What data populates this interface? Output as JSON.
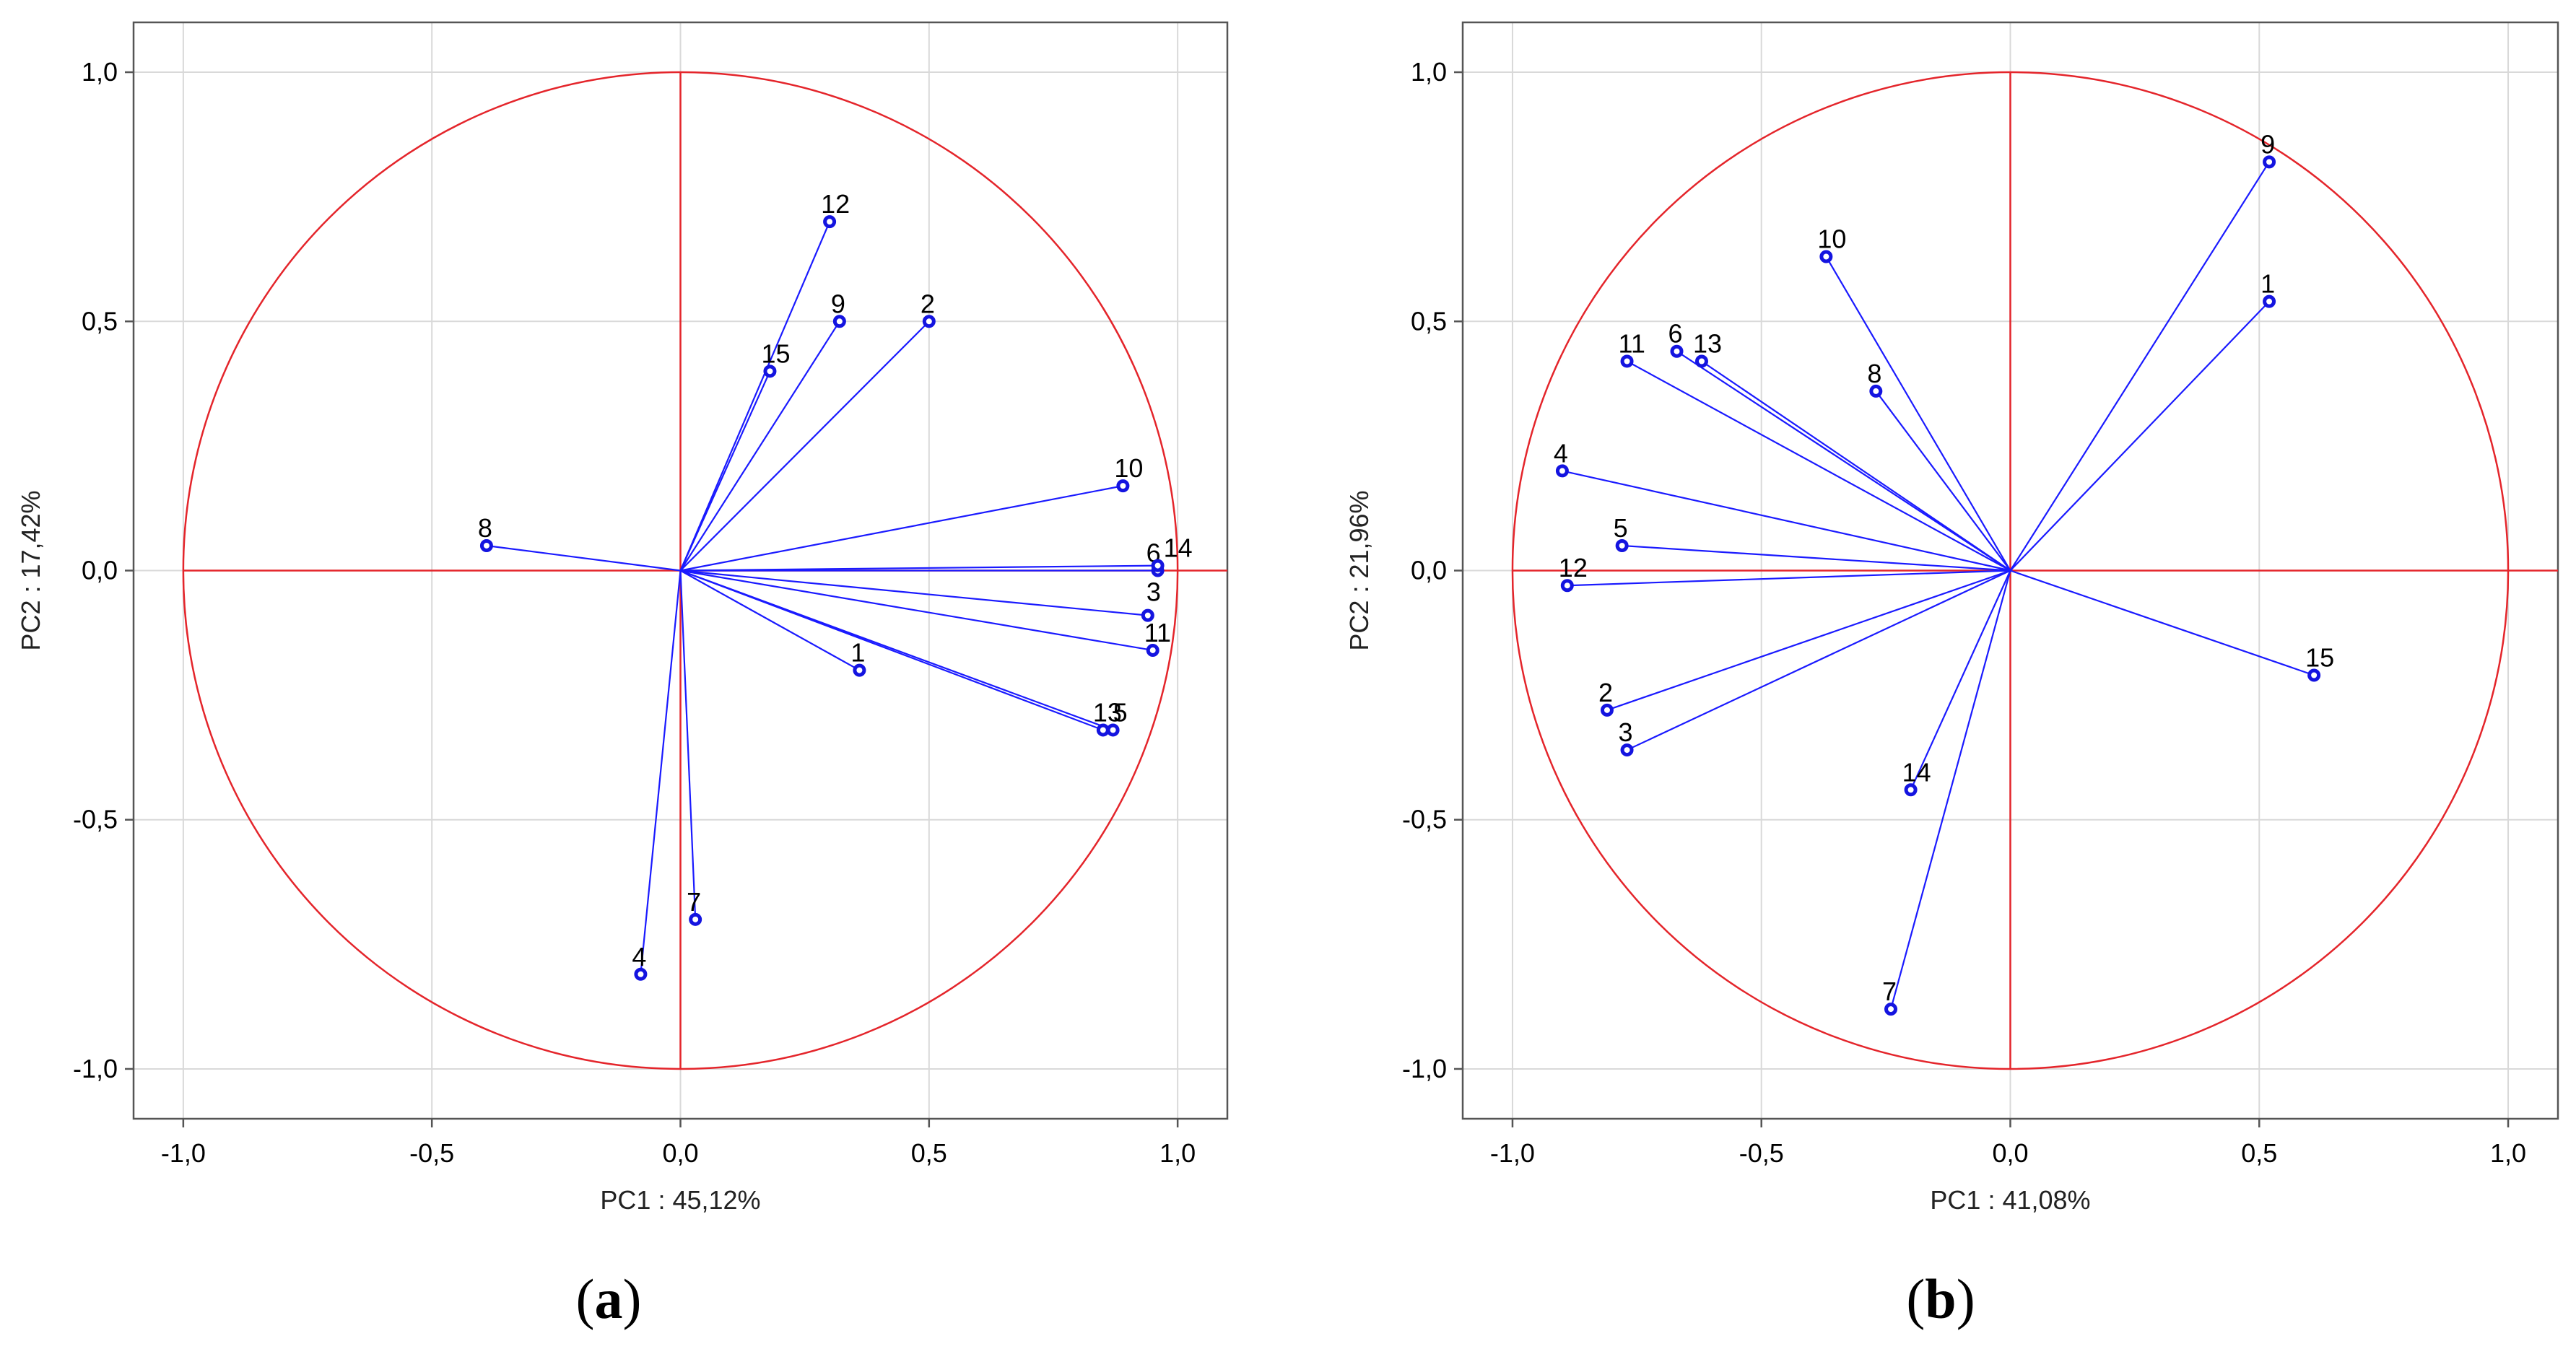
{
  "colors": {
    "circle": "#e4252b",
    "vector": "#1a1aff",
    "grid": "#d9d9d9"
  },
  "chart_data": [
    {
      "type": "scatter",
      "subtype": "pca-correlation-circle",
      "panel": "a",
      "xlabel": "PC1 : 45,12%",
      "ylabel": "PC2 : 17,42%",
      "xlim": [
        -1.1,
        1.1
      ],
      "ylim": [
        -1.1,
        1.1
      ],
      "xticks": [
        "-1,0",
        "-0,5",
        "0,0",
        "0,5",
        "1,0"
      ],
      "yticks": [
        "1,0",
        "0,5",
        "0,0",
        "-0,5",
        "-1,0"
      ],
      "xtick_values": [
        -1.0,
        -0.5,
        0.0,
        0.5,
        1.0
      ],
      "ytick_values": [
        1.0,
        0.5,
        0.0,
        -0.5,
        -1.0
      ],
      "grid": true,
      "points": [
        {
          "label": "1",
          "x": 0.36,
          "y": -0.2
        },
        {
          "label": "2",
          "x": 0.5,
          "y": 0.5
        },
        {
          "label": "3",
          "x": 0.94,
          "y": -0.09
        },
        {
          "label": "4",
          "x": -0.08,
          "y": -0.81
        },
        {
          "label": "5",
          "x": 0.87,
          "y": -0.32
        },
        {
          "label": "6",
          "x": 0.96,
          "y": 0.0
        },
        {
          "label": "7",
          "x": 0.03,
          "y": -0.7
        },
        {
          "label": "8",
          "x": -0.39,
          "y": 0.05
        },
        {
          "label": "9",
          "x": 0.32,
          "y": 0.5
        },
        {
          "label": "10",
          "x": 0.89,
          "y": 0.17
        },
        {
          "label": "11",
          "x": 0.95,
          "y": -0.16
        },
        {
          "label": "12",
          "x": 0.3,
          "y": 0.7
        },
        {
          "label": "13",
          "x": 0.85,
          "y": -0.32
        },
        {
          "label": "14",
          "x": 0.96,
          "y": 0.01
        },
        {
          "label": "15",
          "x": 0.18,
          "y": 0.4
        }
      ]
    },
    {
      "type": "scatter",
      "subtype": "pca-correlation-circle",
      "panel": "b",
      "xlabel": "PC1 : 41,08%",
      "ylabel": "PC2 : 21,96%",
      "xlim": [
        -1.1,
        1.1
      ],
      "ylim": [
        -1.1,
        1.1
      ],
      "xticks": [
        "-1,0",
        "-0,5",
        "0,0",
        "0,5",
        "1,0"
      ],
      "yticks": [
        "1,0",
        "0,5",
        "0,0",
        "-0,5",
        "-1,0"
      ],
      "xtick_values": [
        -1.0,
        -0.5,
        0.0,
        0.5,
        1.0
      ],
      "ytick_values": [
        1.0,
        0.5,
        0.0,
        -0.5,
        -1.0
      ],
      "grid": true,
      "points": [
        {
          "label": "1",
          "x": 0.52,
          "y": 0.54
        },
        {
          "label": "2",
          "x": -0.81,
          "y": -0.28
        },
        {
          "label": "3",
          "x": -0.77,
          "y": -0.36
        },
        {
          "label": "4",
          "x": -0.9,
          "y": 0.2
        },
        {
          "label": "5",
          "x": -0.78,
          "y": 0.05
        },
        {
          "label": "6",
          "x": -0.67,
          "y": 0.44
        },
        {
          "label": "7",
          "x": -0.24,
          "y": -0.88
        },
        {
          "label": "8",
          "x": -0.27,
          "y": 0.36
        },
        {
          "label": "9",
          "x": 0.52,
          "y": 0.82
        },
        {
          "label": "10",
          "x": -0.37,
          "y": 0.63
        },
        {
          "label": "11",
          "x": -0.77,
          "y": 0.42
        },
        {
          "label": "12",
          "x": -0.89,
          "y": -0.03
        },
        {
          "label": "13",
          "x": -0.62,
          "y": 0.42
        },
        {
          "label": "14",
          "x": -0.2,
          "y": -0.44
        },
        {
          "label": "15",
          "x": 0.61,
          "y": -0.21
        }
      ]
    }
  ],
  "panel_labels": [
    {
      "open": "(",
      "letter": "a",
      "close": ")"
    },
    {
      "open": "(",
      "letter": "b",
      "close": ")"
    }
  ]
}
